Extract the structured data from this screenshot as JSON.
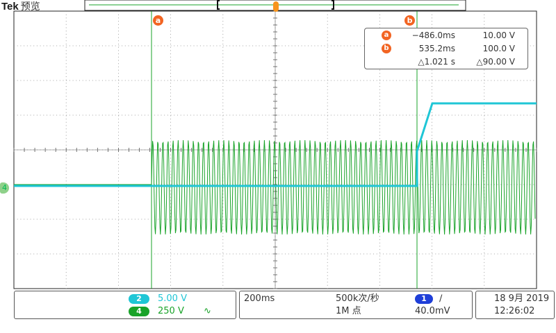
{
  "brand": {
    "name": "Tek",
    "mode": "预览"
  },
  "cursors": {
    "a_tag": "a",
    "b_tag": "b"
  },
  "trigger_marker": {
    "tag": "T"
  },
  "channel_marker": {
    "label": "4"
  },
  "readout": {
    "a_label": "a",
    "a_time": "−486.0ms",
    "a_value": "10.00 V",
    "b_label": "b",
    "b_time": "535.2ms",
    "b_value": "100.0 V",
    "delta_time": "△1.021 s",
    "delta_value": "△90.00 V"
  },
  "channels": {
    "ch2": {
      "number": "2",
      "scale": "5.00 V",
      "color": "#1fc6d6"
    },
    "ch4": {
      "number": "4",
      "scale": "250 V",
      "coupling": "∿",
      "color": "#19a329"
    }
  },
  "timebase": {
    "scale": "200ms",
    "sample_rate": "500k次/秒",
    "record_length": "1M 点"
  },
  "trigger": {
    "channel": "1",
    "slope": "∕",
    "level": "40.0mV",
    "color": "#1f3fd8"
  },
  "datetime": {
    "date": "18 9月 2019",
    "time": "12:26:02"
  }
}
